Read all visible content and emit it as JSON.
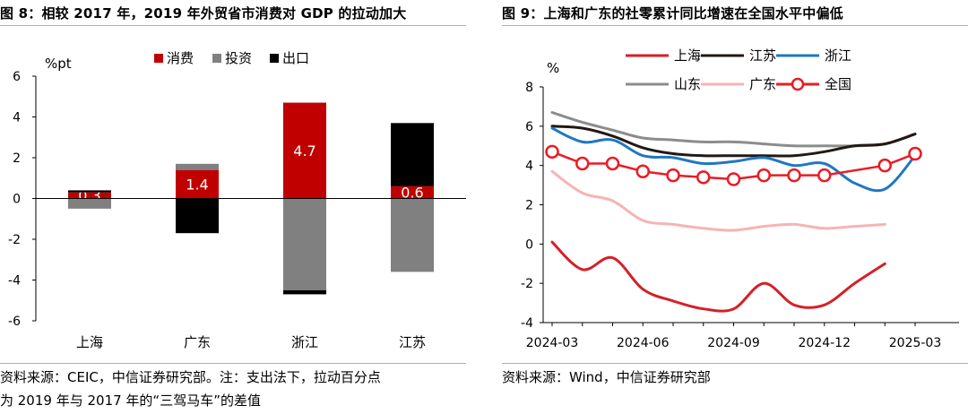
{
  "left": {
    "figure_title": "图 8：相较 2017 年，2019 年外贸省市消费对 GDP 的拉动加大",
    "source_line1": "资料来源：CEIC，中信证券研究部。注：支出法下，拉动百分点",
    "source_line2": "为 2019 年与 2017 年的“三驾马车”的差值",
    "colors": {
      "consumption": "#c00000",
      "investment": "#808080",
      "exports": "#000000",
      "label_text": "#ffffff"
    }
  },
  "right": {
    "figure_title": "图 9：上海和广东的社零累计同比增速在全国水平中偏低",
    "source_line1": "资料来源：Wind，中信证券研究部",
    "colors": {
      "shanghai": "#d52027",
      "jiangsu": "#231815",
      "zhejiang": "#1f78c1",
      "shandong": "#8c8c8c",
      "guangdong": "#f7b3b3",
      "national": "#ea1c24"
    }
  },
  "chart_data": [
    {
      "type": "bar",
      "stacked": true,
      "title": "图 8：相较 2017 年，2019 年外贸省市消费对 GDP 的拉动加大",
      "unit_label": "%pt",
      "categories": [
        "上海",
        "广东",
        "浙江",
        "江苏"
      ],
      "series": [
        {
          "name": "消费",
          "values": [
            0.3,
            1.4,
            4.7,
            0.6
          ],
          "labels": [
            "0.3",
            "1.4",
            "4.7",
            "0.6"
          ]
        },
        {
          "name": "投资",
          "values": [
            -0.5,
            0.3,
            -4.5,
            -3.6
          ]
        },
        {
          "name": "出口",
          "values": [
            0.1,
            -1.7,
            -0.2,
            3.1
          ]
        }
      ],
      "ylim": [
        -6,
        6
      ],
      "yticks": [
        -6,
        -4,
        -2,
        0,
        2,
        4,
        6
      ],
      "ytick_labels": [
        "-6",
        "-4",
        "-2",
        "0",
        "2",
        "4",
        "6"
      ],
      "legend_position": "top",
      "grid": false
    },
    {
      "type": "line",
      "title": "图 9：上海和广东的社零累计同比增速在全国水平中偏低",
      "unit_label": "%",
      "x": [
        "2024-03",
        "2024-04",
        "2024-05",
        "2024-06",
        "2024-07",
        "2024-08",
        "2024-09",
        "2024-10",
        "2024-11",
        "2024-12",
        "2025-01",
        "2025-02",
        "2025-03"
      ],
      "xtick_labels": [
        "2024-03",
        "2024-06",
        "2024-09",
        "2024-12",
        "2025-03"
      ],
      "xtick_indices": [
        0,
        3,
        6,
        9,
        12
      ],
      "series": [
        {
          "name": "上海",
          "values": [
            0.1,
            -1.3,
            -0.7,
            -2.3,
            -2.9,
            -3.3,
            -3.3,
            -2.0,
            -3.1,
            -3.1,
            -2.0,
            -1.0,
            null
          ]
        },
        {
          "name": "江苏",
          "values": [
            6.0,
            5.9,
            5.5,
            4.9,
            4.6,
            4.5,
            4.5,
            4.5,
            4.5,
            4.7,
            5.0,
            5.1,
            5.6
          ]
        },
        {
          "name": "浙江",
          "values": [
            5.9,
            5.2,
            5.3,
            4.5,
            4.4,
            4.1,
            4.2,
            4.4,
            4.0,
            4.1,
            3.1,
            2.8,
            4.5
          ]
        },
        {
          "name": "山东",
          "values": [
            6.7,
            6.2,
            5.8,
            5.4,
            5.3,
            5.2,
            5.2,
            5.1,
            5.0,
            5.0,
            5.0,
            5.1,
            5.6
          ]
        },
        {
          "name": "广东",
          "values": [
            3.7,
            2.6,
            2.2,
            1.2,
            1.0,
            0.8,
            0.7,
            0.9,
            1.0,
            0.8,
            0.9,
            1.0,
            null
          ]
        },
        {
          "name": "全国",
          "values": [
            4.7,
            4.1,
            4.1,
            3.7,
            3.5,
            3.4,
            3.3,
            3.5,
            3.5,
            3.5,
            null,
            4.0,
            4.6
          ],
          "markers": true
        }
      ],
      "ylim": [
        -4,
        8
      ],
      "yticks": [
        -4,
        -2,
        0,
        2,
        4,
        6,
        8
      ],
      "ytick_labels": [
        "-4",
        "-2",
        "0",
        "2",
        "4",
        "6",
        "8"
      ],
      "legend_position": "top",
      "grid": false
    }
  ]
}
